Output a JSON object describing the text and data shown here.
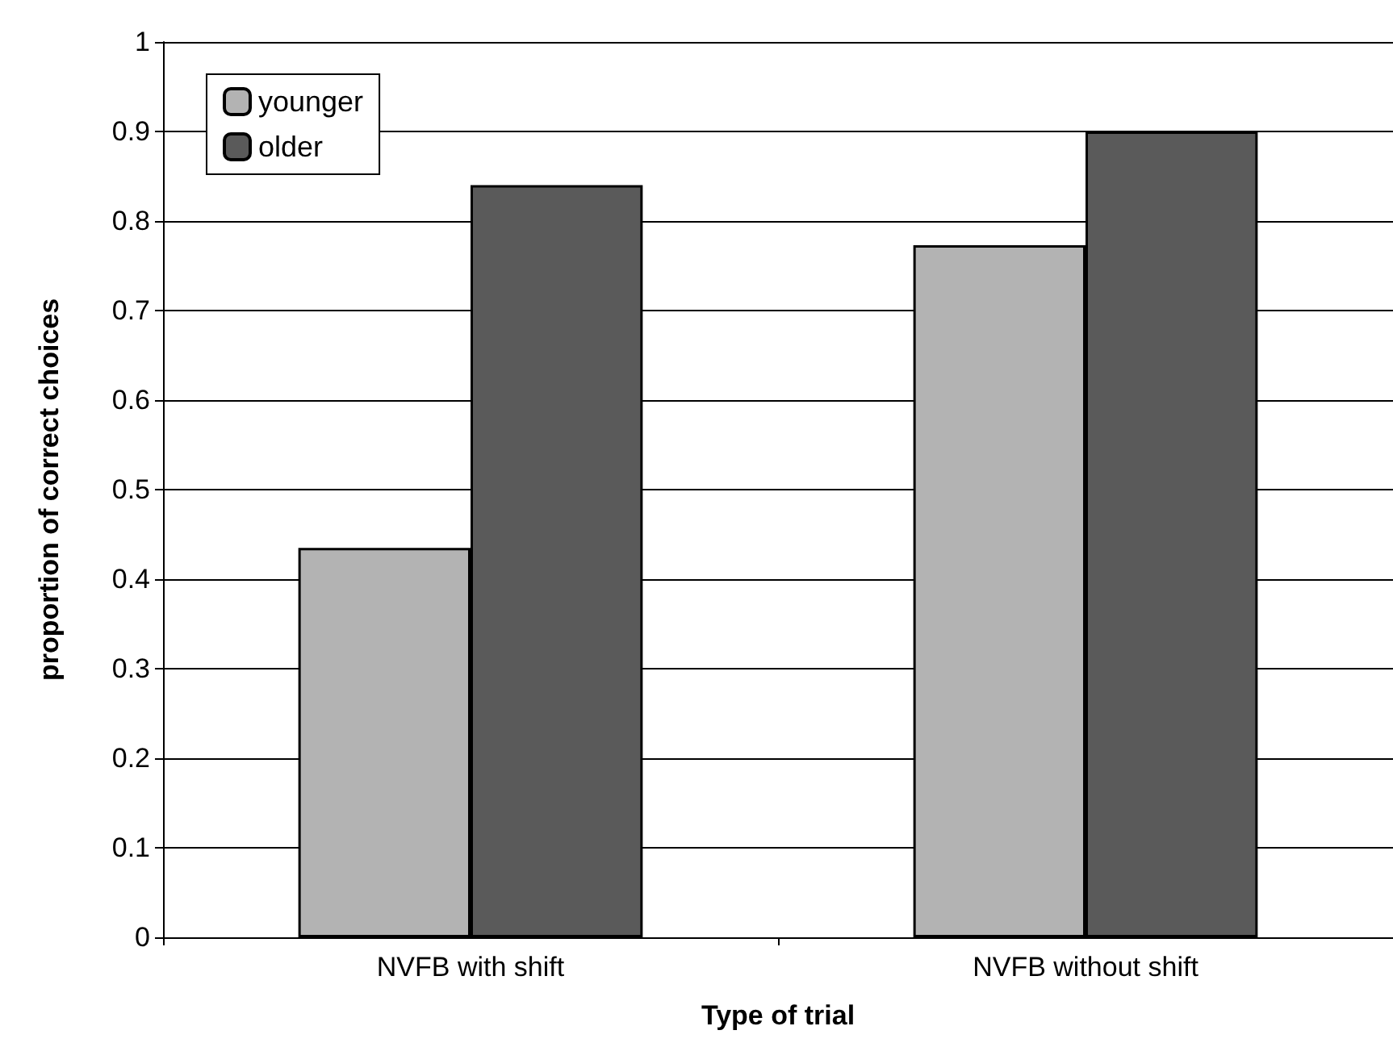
{
  "chart_data": {
    "type": "bar",
    "xlabel": "Type of trial",
    "ylabel": "proportion of correct choices",
    "categories": [
      "NVFB with shift",
      "NVFB without shift"
    ],
    "series": [
      {
        "name": "younger",
        "color": "#b3b3b3",
        "values": [
          0.435,
          0.773
        ]
      },
      {
        "name": "older",
        "color": "#5a5a5a",
        "values": [
          0.84,
          0.9
        ]
      }
    ],
    "ylim": [
      0,
      1
    ],
    "yticks": [
      0,
      0.1,
      0.2,
      0.3,
      0.4,
      0.5,
      0.6,
      0.7,
      0.8,
      0.9,
      1
    ],
    "grid": "y",
    "legend": "top left"
  }
}
